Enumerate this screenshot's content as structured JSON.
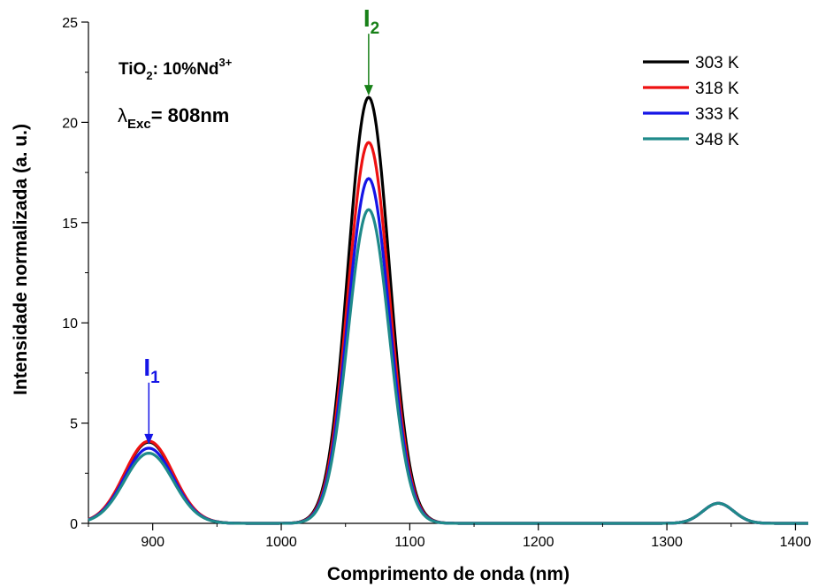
{
  "chart_data": {
    "type": "line",
    "xlabel": "Comprimento de onda (nm)",
    "ylabel": "Intensidade normalizada (a. u.)",
    "xlim": [
      850,
      1410
    ],
    "ylim": [
      0,
      25
    ],
    "xticks": [
      900,
      1000,
      1100,
      1200,
      1300,
      1400
    ],
    "yticks": [
      0,
      5,
      10,
      15,
      20,
      25
    ],
    "legend_position": "top-right",
    "sample_label": {
      "base": "TiO",
      "sub": "2",
      "mid": ": 10%Nd",
      "sup": "3+"
    },
    "excitation_label": {
      "base": "λ",
      "sub": "Exc",
      "rest": "= 808nm"
    },
    "peak_labels": [
      {
        "base": "I",
        "sub": "1",
        "x": 897,
        "y": 3.8,
        "color": "#1515e6"
      },
      {
        "base": "I",
        "sub": "2",
        "x": 1068,
        "y": 21.2,
        "color": "#178017"
      }
    ],
    "series": [
      {
        "name": "303 K",
        "color": "#000000",
        "peaks": [
          4.05,
          21.25,
          1.0
        ]
      },
      {
        "name": "318 K",
        "color": "#ee1111",
        "peaks": [
          4.1,
          19.0,
          1.0
        ]
      },
      {
        "name": "333 K",
        "color": "#1515e6",
        "peaks": [
          3.75,
          17.2,
          1.0
        ]
      },
      {
        "name": "348 K",
        "color": "#1f8a8a",
        "peaks": [
          3.5,
          15.65,
          1.0
        ]
      }
    ],
    "peak_positions": [
      897,
      1068,
      1340
    ],
    "peak_widths": [
      19,
      16,
      12
    ]
  }
}
